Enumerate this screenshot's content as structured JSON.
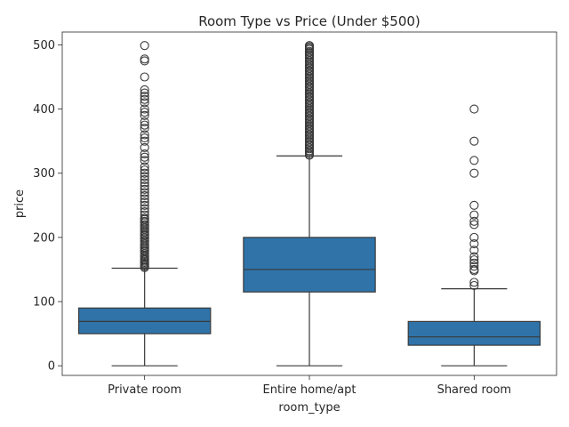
{
  "chart_data": {
    "type": "box",
    "title": "Room Type vs Price (Under $500)",
    "xlabel": "room_type",
    "ylabel": "price",
    "ylim": [
      -15,
      520
    ],
    "yticks": [
      0,
      100,
      200,
      300,
      400,
      500
    ],
    "grid": false,
    "box_color": "#2f73a9",
    "line_color": "#3a3a3a",
    "categories": [
      "Private room",
      "Entire home/apt",
      "Shared room"
    ],
    "boxes": [
      {
        "category": "Private room",
        "min": 0,
        "q1": 50,
        "median": 69,
        "q3": 90,
        "max": 152,
        "outliers": [
          153,
          155,
          157,
          159,
          161,
          163,
          165,
          167,
          170,
          172,
          175,
          178,
          180,
          183,
          185,
          188,
          190,
          193,
          195,
          198,
          200,
          203,
          205,
          208,
          210,
          213,
          215,
          218,
          220,
          223,
          225,
          228,
          230,
          235,
          240,
          245,
          250,
          255,
          260,
          265,
          270,
          275,
          280,
          285,
          290,
          295,
          300,
          305,
          310,
          320,
          325,
          330,
          340,
          350,
          355,
          360,
          370,
          375,
          380,
          390,
          395,
          400,
          410,
          415,
          420,
          425,
          430,
          450,
          475,
          478,
          499
        ]
      },
      {
        "category": "Entire home/apt",
        "min": 0,
        "q1": 115,
        "median": 150,
        "q3": 200,
        "max": 327,
        "outliers": [
          328,
          330,
          333,
          335,
          338,
          340,
          343,
          345,
          348,
          350,
          353,
          355,
          358,
          360,
          363,
          365,
          368,
          370,
          373,
          375,
          378,
          380,
          383,
          385,
          388,
          390,
          393,
          395,
          398,
          400,
          403,
          405,
          408,
          410,
          413,
          415,
          418,
          420,
          423,
          425,
          428,
          430,
          433,
          435,
          438,
          440,
          443,
          445,
          448,
          450,
          453,
          455,
          458,
          460,
          463,
          465,
          468,
          470,
          473,
          475,
          478,
          480,
          483,
          485,
          488,
          490,
          493,
          495,
          497,
          499
        ]
      },
      {
        "category": "Shared room",
        "min": 0,
        "q1": 32,
        "median": 45,
        "q3": 69,
        "max": 120,
        "outliers": [
          125,
          130,
          148,
          150,
          155,
          160,
          165,
          170,
          180,
          190,
          200,
          220,
          225,
          235,
          250,
          300,
          320,
          350,
          400
        ]
      }
    ]
  }
}
